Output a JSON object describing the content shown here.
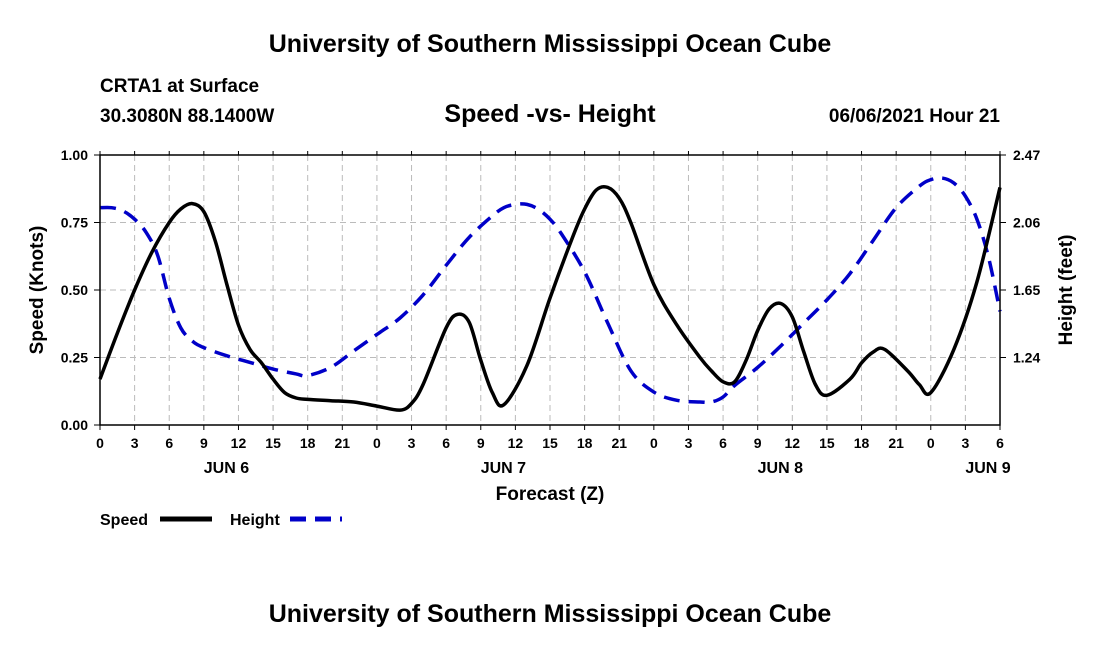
{
  "header": {
    "title": "University of Southern Mississippi Ocean Cube",
    "station": "CRTA1 at Surface",
    "coordinates": "30.3080N  88.1400W",
    "chart_title": "Speed -vs- Height",
    "datetime": "06/06/2021 Hour 21"
  },
  "footer": {
    "title": "University of Southern Mississippi Ocean Cube"
  },
  "chart_data": {
    "type": "line",
    "title": "Speed -vs- Height",
    "xlabel": "Forecast (Z)",
    "ylabel": "Speed (Knots)",
    "y2label": "Height (feet)",
    "xlim": [
      0,
      78
    ],
    "ylim": [
      0,
      1.0
    ],
    "y2lim": [
      0.83,
      2.47
    ],
    "grid": true,
    "legend_position": "bottom-left",
    "x_tick_labels": [
      "0",
      "3",
      "6",
      "9",
      "12",
      "15",
      "18",
      "21",
      "0",
      "3",
      "6",
      "9",
      "12",
      "15",
      "18",
      "21",
      "0",
      "3",
      "6",
      "9",
      "12",
      "15",
      "18",
      "21",
      "0",
      "3",
      "6"
    ],
    "day_labels": [
      {
        "label": "JUN 6",
        "hour": 12
      },
      {
        "label": "JUN 7",
        "hour": 36
      },
      {
        "label": "JUN 8",
        "hour": 60
      },
      {
        "label": "JUN 9",
        "hour": 78
      }
    ],
    "y_ticks": [
      "0.00",
      "0.25",
      "0.50",
      "0.75",
      "1.00"
    ],
    "y_tick_values": [
      0,
      0.25,
      0.5,
      0.75,
      1.0
    ],
    "y2_ticks": [
      "1.24",
      "1.65",
      "2.06",
      "2.47"
    ],
    "y2_tick_values": [
      1.24,
      1.65,
      2.06,
      2.47
    ],
    "series": [
      {
        "name": "Speed",
        "axis": "left",
        "color": "#000000",
        "style": "solid",
        "x": [
          0,
          1.5,
          3,
          4.5,
          6,
          7,
          8,
          9,
          10,
          11,
          12,
          13,
          14,
          15,
          16,
          17,
          18,
          20,
          22,
          24,
          26,
          27,
          28,
          30,
          31,
          32,
          33,
          34,
          35,
          37,
          39,
          41,
          42,
          43,
          44,
          45,
          46,
          48,
          50,
          52,
          53,
          54,
          55,
          56,
          57,
          58,
          59,
          60,
          61,
          62,
          63,
          65,
          66,
          67,
          68,
          70,
          71,
          72,
          74,
          76,
          78
        ],
        "y": [
          0.17,
          0.34,
          0.5,
          0.64,
          0.75,
          0.8,
          0.82,
          0.79,
          0.68,
          0.52,
          0.37,
          0.28,
          0.23,
          0.17,
          0.12,
          0.1,
          0.095,
          0.09,
          0.085,
          0.07,
          0.055,
          0.08,
          0.15,
          0.36,
          0.41,
          0.38,
          0.24,
          0.12,
          0.075,
          0.22,
          0.47,
          0.7,
          0.8,
          0.87,
          0.88,
          0.84,
          0.75,
          0.52,
          0.37,
          0.25,
          0.2,
          0.16,
          0.16,
          0.24,
          0.35,
          0.43,
          0.45,
          0.4,
          0.27,
          0.15,
          0.11,
          0.17,
          0.23,
          0.27,
          0.28,
          0.2,
          0.15,
          0.12,
          0.28,
          0.53,
          0.88
        ]
      },
      {
        "name": "Height",
        "axis": "right",
        "color": "#0000c8",
        "style": "dashed",
        "x": [
          0,
          1,
          2,
          3,
          4,
          5,
          6,
          7,
          8,
          9,
          11,
          13,
          15,
          17,
          18,
          20,
          22,
          24,
          26,
          28,
          30,
          32,
          34,
          35,
          36,
          37,
          38,
          39,
          40,
          42,
          44,
          46,
          48,
          50,
          52,
          53,
          54,
          55,
          57,
          59,
          61,
          63,
          65,
          67,
          69,
          71,
          72,
          73,
          74,
          75,
          76,
          77,
          78
        ],
        "y": [
          2.15,
          2.15,
          2.13,
          2.08,
          2.0,
          1.86,
          1.6,
          1.42,
          1.34,
          1.3,
          1.25,
          1.21,
          1.17,
          1.14,
          1.13,
          1.18,
          1.28,
          1.38,
          1.48,
          1.62,
          1.8,
          1.97,
          2.1,
          2.15,
          2.17,
          2.17,
          2.14,
          2.08,
          1.99,
          1.76,
          1.45,
          1.16,
          1.03,
          0.98,
          0.97,
          0.97,
          1.0,
          1.07,
          1.18,
          1.31,
          1.45,
          1.59,
          1.75,
          1.95,
          2.15,
          2.28,
          2.32,
          2.33,
          2.3,
          2.22,
          2.08,
          1.85,
          1.52
        ]
      }
    ],
    "legend": [
      {
        "label": "Speed",
        "color": "#000000",
        "style": "solid"
      },
      {
        "label": "Height",
        "color": "#0000c8",
        "style": "dashed"
      }
    ]
  }
}
